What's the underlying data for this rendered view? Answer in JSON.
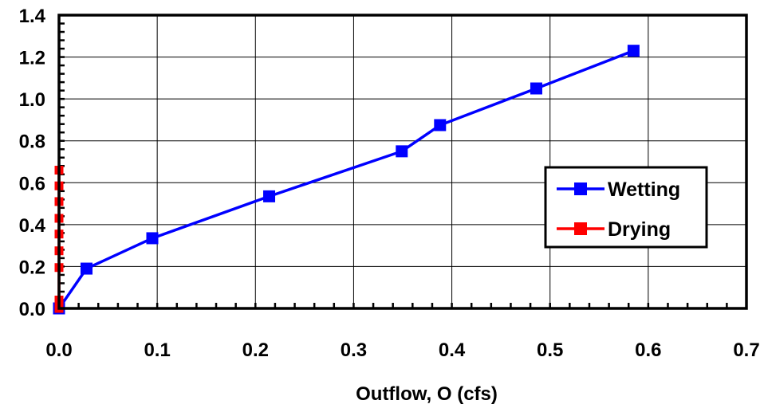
{
  "chart_data": {
    "type": "line",
    "title": "",
    "xlabel": "Outflow, O (cfs)",
    "ylabel": "",
    "xlim": [
      0.0,
      0.7
    ],
    "ylim": [
      0.0,
      1.4
    ],
    "x_ticks": [
      "0.0",
      "0.1",
      "0.2",
      "0.3",
      "0.4",
      "0.5",
      "0.6",
      "0.7"
    ],
    "y_ticks": [
      "0.0",
      "0.2",
      "0.4",
      "0.6",
      "0.8",
      "1.0",
      "1.2",
      "1.4"
    ],
    "x_tick_values": [
      0.0,
      0.1,
      0.2,
      0.3,
      0.4,
      0.5,
      0.6,
      0.7
    ],
    "y_tick_values": [
      0.0,
      0.2,
      0.4,
      0.6,
      0.8,
      1.0,
      1.2,
      1.4
    ],
    "x_minor_step": 0.02,
    "y_minor_step": 0.04,
    "grid": true,
    "legend_position": "right",
    "series": [
      {
        "name": "Wetting",
        "color": "#0000ff",
        "marker": "square",
        "x": [
          0.0,
          0.028,
          0.095,
          0.214,
          0.349,
          0.388,
          0.486,
          0.585
        ],
        "y": [
          0.0,
          0.19,
          0.335,
          0.535,
          0.75,
          0.875,
          1.05,
          1.23
        ]
      },
      {
        "name": "Drying",
        "color": "#ff0000",
        "marker": "square",
        "x": [
          0.0,
          0.0,
          0.0,
          0.0,
          0.0,
          0.0,
          0.0,
          0.0,
          0.0
        ],
        "y": [
          0.0,
          0.04,
          0.195,
          0.275,
          0.355,
          0.43,
          0.51,
          0.585,
          0.66
        ]
      }
    ]
  }
}
